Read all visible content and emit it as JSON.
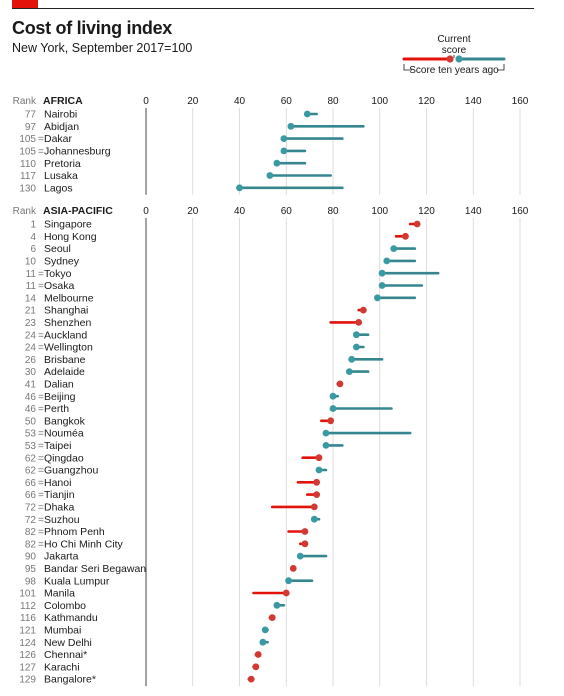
{
  "header": {
    "title": "Cost of living index",
    "subtitle": "New York, September 2017=100"
  },
  "legend": {
    "current": "Current",
    "current2": "score",
    "past": "Score ten years ago"
  },
  "rank_label": "Rank",
  "colors": {
    "increase": "#e3120b",
    "decrease": "#36868f",
    "increase_dot": "#d03a33",
    "decrease_dot": "#3a9aa3"
  },
  "chart_data": [
    {
      "type": "dumbbell",
      "title": "AFRICA",
      "xlim": [
        0,
        160
      ],
      "xticks": [
        0,
        20,
        40,
        60,
        80,
        100,
        120,
        140,
        160
      ],
      "rows": [
        {
          "rank": "77",
          "city": "Nairobi",
          "current": 69,
          "past": 73
        },
        {
          "rank": "97",
          "city": "Abidjan",
          "current": 62,
          "past": 93
        },
        {
          "rank": "105",
          "eq": "=",
          "city": "Dakar",
          "current": 59,
          "past": 84
        },
        {
          "rank": "105",
          "eq": "=",
          "city": "Johannesburg",
          "current": 59,
          "past": 68
        },
        {
          "rank": "110",
          "city": "Pretoria",
          "current": 56,
          "past": 68
        },
        {
          "rank": "117",
          "city": "Lusaka",
          "current": 53,
          "past": 79
        },
        {
          "rank": "130",
          "city": "Lagos",
          "current": 40,
          "past": 84
        }
      ]
    },
    {
      "type": "dumbbell",
      "title": "ASIA-PACIFIC",
      "xlim": [
        0,
        160
      ],
      "xticks": [
        0,
        20,
        40,
        60,
        80,
        100,
        120,
        140,
        160
      ],
      "rows": [
        {
          "rank": "1",
          "city": "Singapore",
          "current": 116,
          "past": 113
        },
        {
          "rank": "4",
          "city": "Hong Kong",
          "current": 111,
          "past": 107
        },
        {
          "rank": "6",
          "city": "Seoul",
          "current": 106,
          "past": 115
        },
        {
          "rank": "10",
          "city": "Sydney",
          "current": 103,
          "past": 115
        },
        {
          "rank": "11",
          "eq": "=",
          "city": "Tokyo",
          "current": 101,
          "past": 125
        },
        {
          "rank": "11",
          "eq": "=",
          "city": "Osaka",
          "current": 101,
          "past": 118
        },
        {
          "rank": "14",
          "city": "Melbourne",
          "current": 99,
          "past": 115
        },
        {
          "rank": "21",
          "city": "Shanghai",
          "current": 93,
          "past": 91
        },
        {
          "rank": "23",
          "city": "Shenzhen",
          "current": 91,
          "past": 79
        },
        {
          "rank": "24",
          "eq": "=",
          "city": "Auckland",
          "current": 90,
          "past": 95
        },
        {
          "rank": "24",
          "eq": "=",
          "city": "Wellington",
          "current": 90,
          "past": 93
        },
        {
          "rank": "26",
          "city": "Brisbane",
          "current": 88,
          "past": 101
        },
        {
          "rank": "30",
          "city": "Adelaide",
          "current": 87,
          "past": 95
        },
        {
          "rank": "41",
          "city": "Dalian",
          "current": 83,
          "past": 82
        },
        {
          "rank": "46",
          "eq": "=",
          "city": "Beijing",
          "current": 80,
          "past": 82
        },
        {
          "rank": "46",
          "eq": "=",
          "city": "Perth",
          "current": 80,
          "past": 105
        },
        {
          "rank": "50",
          "city": "Bangkok",
          "current": 79,
          "past": 75
        },
        {
          "rank": "53",
          "eq": "=",
          "city": "Nouméa",
          "current": 77,
          "past": 113
        },
        {
          "rank": "53",
          "eq": "=",
          "city": "Taipei",
          "current": 77,
          "past": 84
        },
        {
          "rank": "62",
          "eq": "=",
          "city": "Qingdao",
          "current": 74,
          "past": 67
        },
        {
          "rank": "62",
          "eq": "=",
          "city": "Guangzhou",
          "current": 74,
          "past": 77
        },
        {
          "rank": "66",
          "eq": "=",
          "city": "Hanoi",
          "current": 73,
          "past": 65
        },
        {
          "rank": "66",
          "eq": "=",
          "city": "Tianjin",
          "current": 73,
          "past": 69
        },
        {
          "rank": "72",
          "eq": "=",
          "city": "Dhaka",
          "current": 72,
          "past": 54
        },
        {
          "rank": "72",
          "eq": "=",
          "city": "Suzhou",
          "current": 72,
          "past": 74
        },
        {
          "rank": "82",
          "eq": "=",
          "city": "Phnom Penh",
          "current": 68,
          "past": 61
        },
        {
          "rank": "82",
          "eq": "=",
          "city": "Ho Chi Minh City",
          "current": 68,
          "past": 66
        },
        {
          "rank": "90",
          "city": "Jakarta",
          "current": 66,
          "past": 77
        },
        {
          "rank": "95",
          "city": "Bandar Seri Begawan",
          "current": 63,
          "past": 63
        },
        {
          "rank": "98",
          "city": "Kuala Lumpur",
          "current": 61,
          "past": 71
        },
        {
          "rank": "101",
          "city": "Manila",
          "current": 60,
          "past": 46
        },
        {
          "rank": "112",
          "city": "Colombo",
          "current": 56,
          "past": 59
        },
        {
          "rank": "116",
          "city": "Kathmandu",
          "current": 54,
          "past": 53
        },
        {
          "rank": "121",
          "city": "Mumbai",
          "current": 51,
          "past": 52
        },
        {
          "rank": "124",
          "city": "New Delhi",
          "current": 50,
          "past": 52
        },
        {
          "rank": "126",
          "city": "Chennai*",
          "current": 48,
          "past": 47
        },
        {
          "rank": "127",
          "city": "Karachi",
          "current": 47,
          "past": 46
        },
        {
          "rank": "129",
          "city": "Bangalore*",
          "current": 45,
          "past": 44
        }
      ]
    }
  ]
}
